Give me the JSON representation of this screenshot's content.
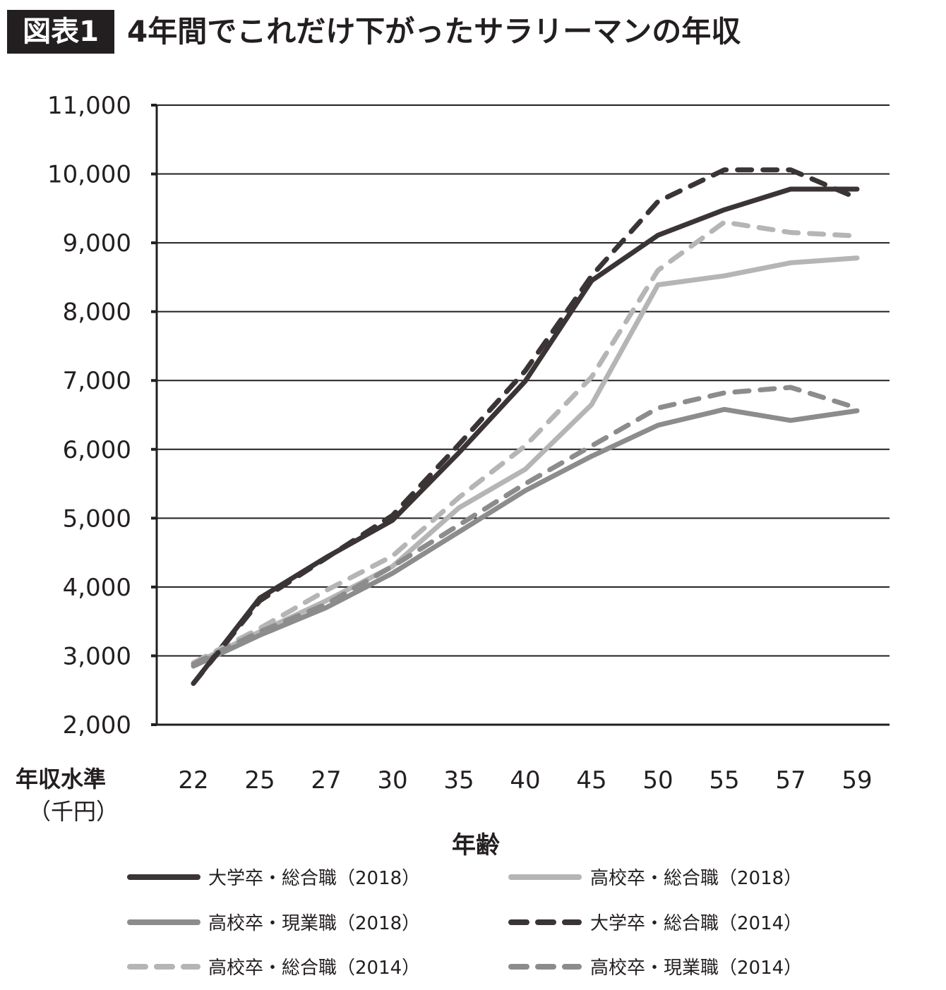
{
  "header": {
    "badge": "図表1",
    "title": "4年間でこれだけ下がったサラリーマンの年収"
  },
  "chart_data": {
    "type": "line",
    "title": "4年間でこれだけ下がったサラリーマンの年収",
    "xlabel": "年齢",
    "ylabel": "年収水準",
    "ylabel_unit": "（千円）",
    "categories": [
      "22",
      "25",
      "27",
      "30",
      "35",
      "40",
      "45",
      "50",
      "55",
      "57",
      "59"
    ],
    "ylim": [
      2000,
      11000
    ],
    "yticks": [
      "2,000",
      "3,000",
      "4,000",
      "5,000",
      "6,000",
      "7,000",
      "8,000",
      "9,000",
      "10,000",
      "11,000"
    ],
    "ytick_values": [
      2000,
      3000,
      4000,
      5000,
      6000,
      7000,
      8000,
      9000,
      10000,
      11000
    ],
    "grid": true,
    "legend_position": "bottom",
    "series": [
      {
        "name": "大学卒・総合職（2018）",
        "color": "#3a3435",
        "dashed": false,
        "values": [
          2600,
          3840,
          4430,
          4970,
          5950,
          6990,
          8450,
          9110,
          9480,
          9780,
          9780
        ]
      },
      {
        "name": "高校卒・総合職（2018）",
        "color": "#b5b5b5",
        "dashed": false,
        "values": [
          2880,
          3350,
          3800,
          4300,
          5150,
          5710,
          6650,
          8390,
          8520,
          8710,
          8780
        ]
      },
      {
        "name": "高校卒・現業職（2018）",
        "color": "#8c8c8c",
        "dashed": false,
        "values": [
          2850,
          3300,
          3700,
          4200,
          4800,
          5400,
          5900,
          6350,
          6580,
          6420,
          6560
        ]
      },
      {
        "name": "大学卒・総合職（2014）",
        "color": "#3a3435",
        "dashed": true,
        "values": [
          2600,
          3800,
          4420,
          5040,
          6070,
          7140,
          8520,
          9600,
          10060,
          10060,
          9650
        ]
      },
      {
        "name": "高校卒・総合職（2014）",
        "color": "#b5b5b5",
        "dashed": true,
        "values": [
          2900,
          3400,
          3950,
          4450,
          5300,
          6050,
          7050,
          8600,
          9300,
          9150,
          9100
        ]
      },
      {
        "name": "高校卒・現業職（2014）",
        "color": "#8c8c8c",
        "dashed": true,
        "values": [
          2880,
          3350,
          3750,
          4300,
          4900,
          5500,
          6050,
          6600,
          6820,
          6900,
          6600
        ]
      }
    ]
  }
}
